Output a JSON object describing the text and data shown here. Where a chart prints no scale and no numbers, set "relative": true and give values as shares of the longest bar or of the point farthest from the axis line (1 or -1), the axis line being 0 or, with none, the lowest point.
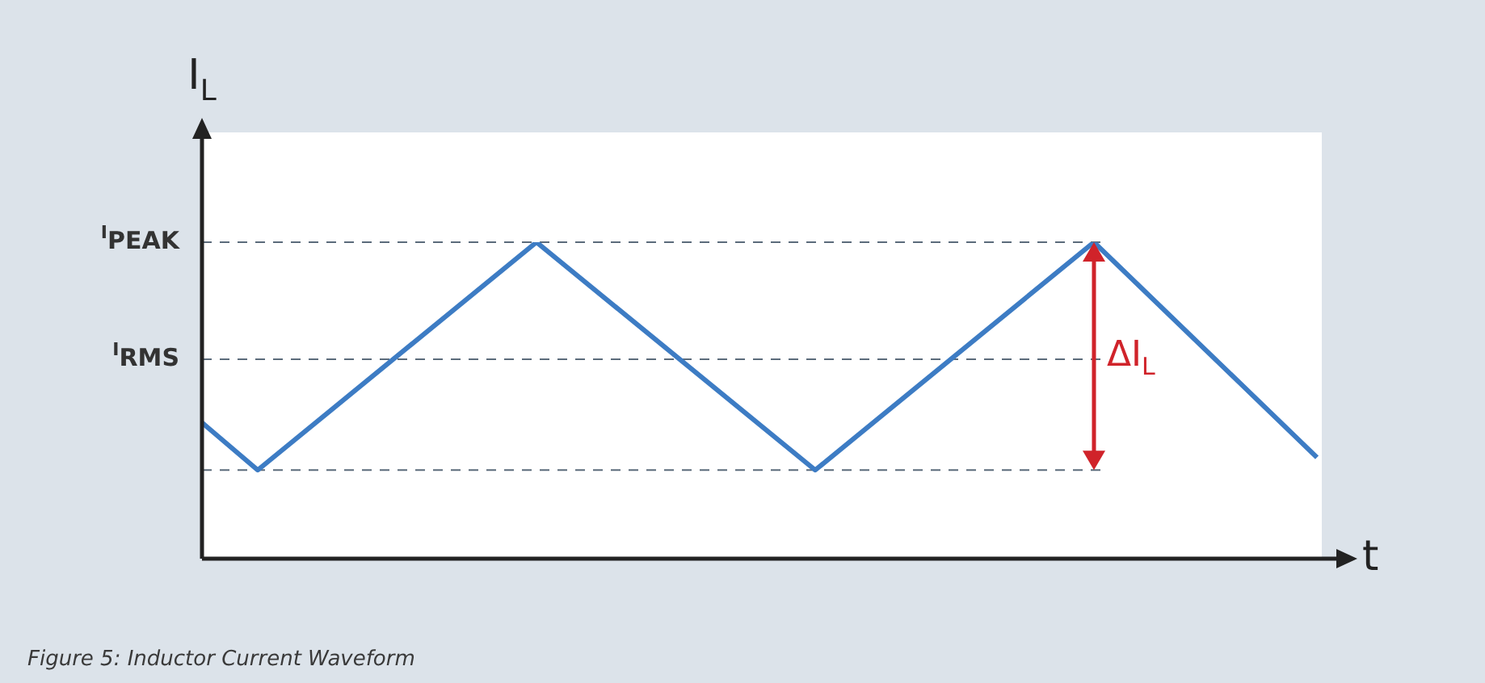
{
  "chart_data": {
    "type": "line",
    "relative": true,
    "ylabel": "I$_{L}$",
    "xlabel": "t",
    "marker": "none",
    "line_style": "solid",
    "categories": [
      null,
      null,
      null,
      null,
      null,
      null,
      null,
      null,
      null,
      null,
      null,
      null,
      null,
      null,
      null,
      null,
      null,
      null,
      null,
      null,
      null
    ],
    "series": [
      {
        "color": "#3d7cc4",
        "values": [
          0.43,
          0.28,
          null,
          null,
          null,
          null,
          1,
          null,
          null,
          null,
          null,
          0.28,
          null,
          null,
          null,
          null,
          1,
          null,
          null,
          null,
          0.32
        ]
      }
    ],
    "ref_lines": [
      {
        "axis": "y",
        "value": 1,
        "label": "$^{I}$PEAK",
        "color": "#5b6b7b",
        "line_style": "dashed"
      },
      {
        "axis": "y",
        "value": 0.63,
        "label": "$^{I}$RMS",
        "color": "#5b6b7b",
        "line_style": "dashed"
      },
      {
        "axis": "y",
        "value": 0.28,
        "color": "#5b6b7b",
        "line_style": "dashed"
      }
    ],
    "annotations": [
      "ΔI$_{L}$",
      "Figure 5: Inductor Current Waveform"
    ]
  }
}
